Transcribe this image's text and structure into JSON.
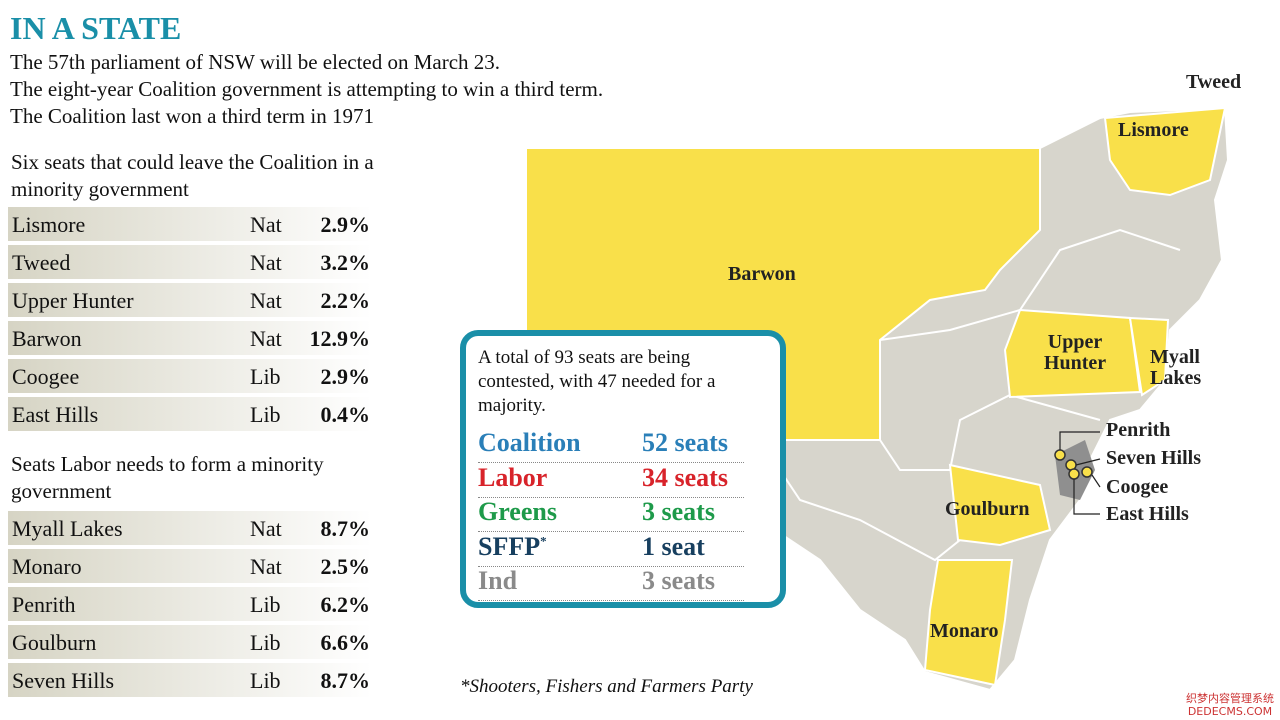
{
  "header": {
    "title": "IN A STATE",
    "lines": [
      "The 57th parliament of NSW will be elected on March 23.",
      "The eight-year Coalition government is attempting to win a third term.",
      "The Coalition last won a third term in 1971"
    ]
  },
  "tables": [
    {
      "heading": "Six seats that could leave the Coalition in a minority government",
      "rows": [
        [
          "Lismore",
          "Nat",
          "2.9%"
        ],
        [
          "Tweed",
          "Nat",
          "3.2%"
        ],
        [
          "Upper Hunter",
          "Nat",
          "2.2%"
        ],
        [
          "Barwon",
          "Nat",
          "12.9%"
        ],
        [
          "Coogee",
          "Lib",
          "2.9%"
        ],
        [
          "East Hills",
          "Lib",
          "0.4%"
        ]
      ]
    },
    {
      "heading": "Seats Labor needs to form a minority government",
      "rows": [
        [
          "Myall Lakes",
          "Nat",
          "8.7%"
        ],
        [
          "Monaro",
          "Nat",
          "2.5%"
        ],
        [
          "Penrith",
          "Lib",
          "6.2%"
        ],
        [
          "Goulburn",
          "Lib",
          "6.6%"
        ],
        [
          "Seven Hills",
          "Lib",
          "8.7%"
        ]
      ]
    }
  ],
  "box": {
    "intro": "A total of 93 seats are being contested, with 47 needed for a majority.",
    "parties": [
      {
        "name": "Coalition",
        "seats": "52 seats",
        "color": "#2a7fb8"
      },
      {
        "name": "Labor",
        "seats": "34 seats",
        "color": "#d8232a"
      },
      {
        "name": "Greens",
        "seats": "3 seats",
        "color": "#1e9a4a"
      },
      {
        "name": "SFFP",
        "mark": "*",
        "seats": "1 seat",
        "color": "#173f5f"
      },
      {
        "name": "Ind",
        "seats": "3 seats",
        "color": "#8a8a8a"
      }
    ]
  },
  "footnote": "*Shooters, Fishers and Farmers Party",
  "map_labels": [
    "Tweed",
    "Lismore",
    "Barwon",
    "Upper Hunter",
    "Myall Lakes",
    "Penrith",
    "Seven Hills",
    "Coogee",
    "East Hills",
    "Goulburn",
    "Monaro"
  ],
  "watermark": [
    "织梦内容管理系统",
    "DEDECMS.COM"
  ]
}
